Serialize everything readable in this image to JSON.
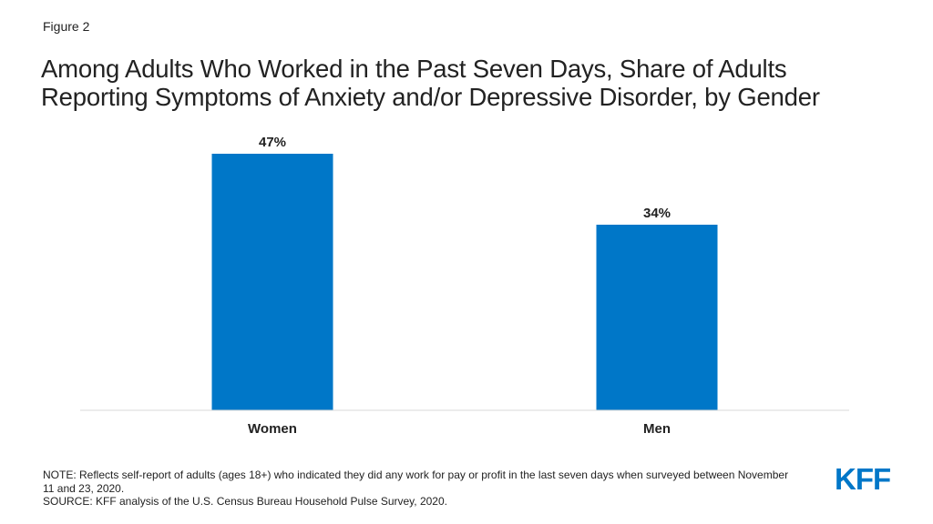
{
  "figure_label": "Figure 2",
  "title_line1": "Among Adults Who Worked in the Past Seven Days, Share of Adults",
  "title_line2": "Reporting Symptoms of Anxiety and/or Depressive Disorder, by Gender",
  "note": "NOTE: Reflects self-report of adults (ages 18+) who indicated they did any work for pay or profit in the last seven days when surveyed between November 11 and 23, 2020.",
  "source": "SOURCE: KFF analysis of the U.S. Census Bureau Household Pulse Survey, 2020.",
  "logo_text": "KFF",
  "colors": {
    "bar": "#0077c8",
    "logo": "#0077c8",
    "axis": "#d9d9d9"
  },
  "chart_data": {
    "type": "bar",
    "categories": [
      "Women",
      "Men"
    ],
    "values": [
      47,
      34
    ],
    "value_labels": [
      "47%",
      "34%"
    ],
    "title": "Among Adults Who Worked in the Past Seven Days, Share of Adults Reporting Symptoms of Anxiety and/or Depressive Disorder, by Gender",
    "xlabel": "",
    "ylabel": "",
    "ylim": [
      0,
      50
    ],
    "grid": false,
    "legend": "none"
  }
}
